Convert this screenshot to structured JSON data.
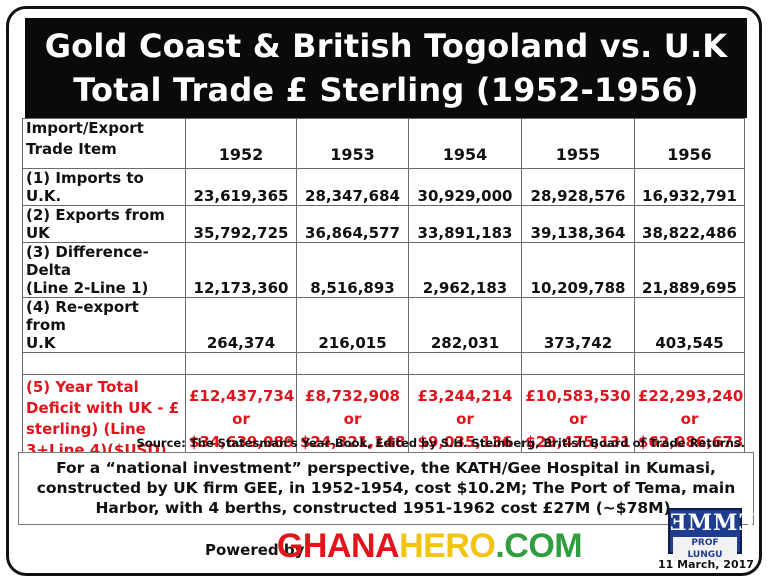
{
  "title": {
    "line1": "Gold Coast & British Togoland vs. U.K",
    "line2": "Total Trade £ Sterling (1952-1956)"
  },
  "table": {
    "header_label_line1": "Import/Export",
    "header_label_line2": "Trade Item",
    "years": [
      "1952",
      "1953",
      "1954",
      "1955",
      "1956"
    ],
    "rows": [
      {
        "label": [
          "(1)  Imports to U.K."
        ],
        "values": [
          "23,619,365",
          "28,347,684",
          "30,929,000",
          "28,928,576",
          "16,932,791"
        ]
      },
      {
        "label": [
          "(2)  Exports from UK"
        ],
        "values": [
          "35,792,725",
          "36,864,577",
          "33,891,183",
          "39,138,364",
          "38,822,486"
        ]
      },
      {
        "label": [
          "(3)  Difference-Delta",
          "(Line 2-Line 1)"
        ],
        "values": [
          "12,173,360",
          "8,516,893",
          "2,962,183",
          "10,209,788",
          "21,889,695"
        ]
      },
      {
        "label": [
          "(4)  Re-export from",
          "U.K"
        ],
        "values": [
          "264,374",
          "216,015",
          "282,031",
          "373,742",
          "403,545"
        ]
      }
    ],
    "deficit": {
      "label": [
        "(5)  Year Total",
        "Deficit with UK - £",
        "sterling) (Line",
        "3+Line 4)($USD)"
      ],
      "values": [
        {
          "gbp": "£12,437,734",
          "or": "or",
          "usd": "$34,639,089"
        },
        {
          "gbp": "£8,732,908",
          "or": "or",
          "usd": "$24,321,148"
        },
        {
          "gbp": "£3,244,214",
          "or": "or",
          "usd": "$9,035,136"
        },
        {
          "gbp": "£10,583,530",
          "or": "or",
          "usd": "$29,475,131"
        },
        {
          "gbp": "£22,293,240",
          "or": "or",
          "usd": "$62,086,673"
        }
      ]
    }
  },
  "source": "Source: The Statesman's Year-Book, Edited by S.H. Steinberg, British Board of Trade Returns.",
  "note": {
    "line1": "For a “national investment” perspective, the KATH/Gee Hospital in Kumasi,",
    "line2": "constructed by UK firm GEE, in 1952-1954, cost $10.2M;  The Port of Tema, main",
    "line3": "Harbor, with 4 berths, constructed 1951-1962 cost £27M (~$78M)."
  },
  "footer": {
    "powered_by": "Powered by:",
    "brand_parts": [
      {
        "text": "GHANA",
        "color": "#e3141b"
      },
      {
        "text": "HERO",
        "color": "#f2c40f"
      },
      {
        "text": ".COM",
        "color": "#2e9e3e"
      }
    ],
    "logo_big": "ƎMMƎ",
    "logo_small": "PROF LUNGU",
    "date": "11 March, 2017"
  },
  "colors": {
    "title_bg": "#0a0a0a",
    "deficit_text": "#e0141c",
    "logo_bg": "#1e3d8f"
  }
}
